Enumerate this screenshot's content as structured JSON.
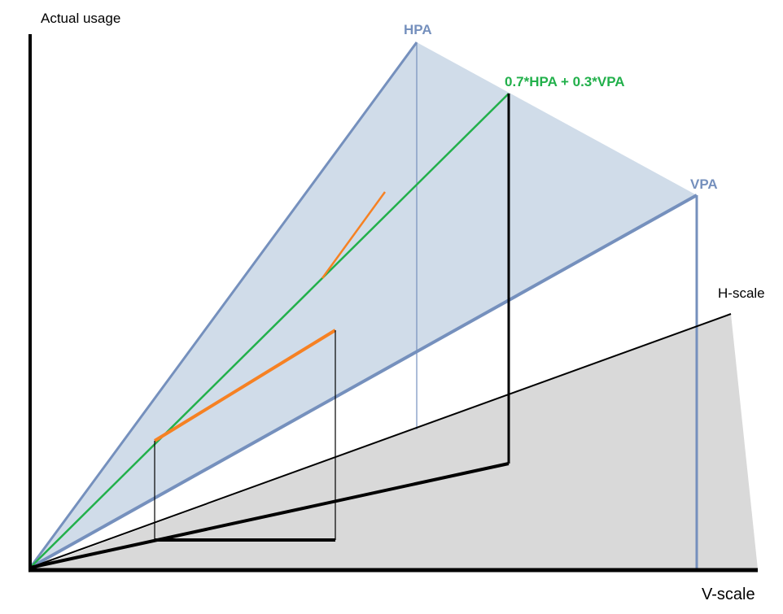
{
  "diagram": {
    "labels": {
      "y_axis": "Actual usage",
      "x_axis": "V-scale",
      "h_scale": "H-scale",
      "hpa": "HPA",
      "vpa": "VPA",
      "mix": "0.7*HPA + 0.3*VPA"
    },
    "colors": {
      "axis": "#000000",
      "pa_region": "#d0dce9",
      "pa_edge": "#7590bd",
      "hscale_region": "#d9d9d9",
      "mix_line": "#22b04b",
      "orange": "#f68123",
      "mix_label": "#22b04b",
      "pa_label": "#7590bd"
    }
  }
}
